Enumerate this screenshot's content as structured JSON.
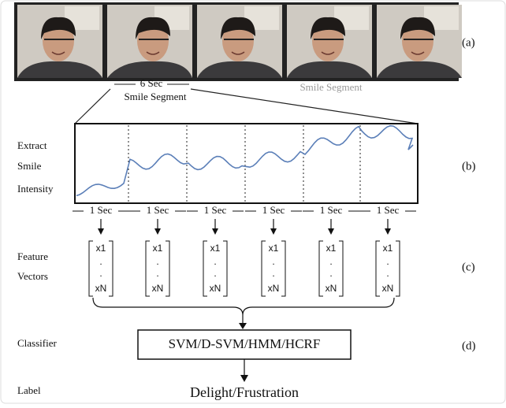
{
  "panel_labels": [
    "(a)",
    "(b)",
    "(c)",
    "(d)"
  ],
  "photos": {
    "duration": "6 Sec",
    "caption": "Smile Segment",
    "faded_caption": "Smile Segment"
  },
  "intensity": {
    "label": [
      "Extract",
      "Smile",
      "Intensity"
    ],
    "windows": [
      "1 Sec",
      "1 Sec",
      "1 Sec",
      "1 Sec",
      "1 Sec",
      "1 Sec"
    ]
  },
  "features": {
    "label": [
      "Feature",
      "Vectors"
    ],
    "vectors": [
      [
        "x1",
        ".",
        ".",
        "xN"
      ],
      [
        "x1",
        ".",
        ".",
        "xN"
      ],
      [
        "x1",
        ".",
        ".",
        "xN"
      ],
      [
        "x1",
        ".",
        ".",
        "xN"
      ],
      [
        "x1",
        ".",
        ".",
        "xN"
      ],
      [
        "x1",
        ".",
        ".",
        "xN"
      ]
    ]
  },
  "classifier": {
    "label": "Classifier",
    "name": "SVM/D-SVM/HMM/HCRF"
  },
  "output": {
    "label": "Label",
    "value": "Delight/Frustration"
  }
}
